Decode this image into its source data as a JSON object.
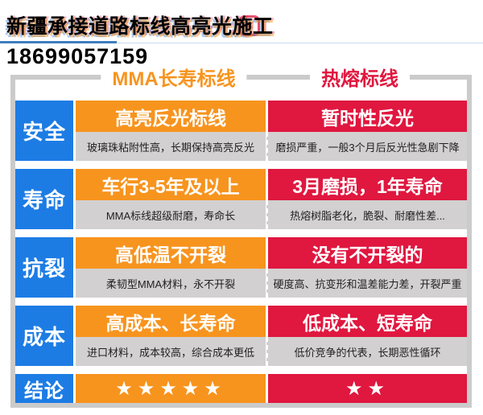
{
  "header": {
    "title": "新疆承接道路标线高亮光施工",
    "title_mark": "✕",
    "phone": "18699057159"
  },
  "table": {
    "columns": {
      "mma": "MMA长寿标线",
      "hot": "热熔标线"
    },
    "rows": [
      {
        "label": "安全",
        "mma": {
          "headline": "高亮反光标线",
          "detail": "玻璃珠粘附性高，长期保持高亮反光"
        },
        "hot": {
          "headline": "暂时性反光",
          "detail": "磨损严重，一般3个月后反光性急剧下降"
        }
      },
      {
        "label": "寿命",
        "mma": {
          "headline": "车行3-5年及以上",
          "detail": "MMA标线超级耐磨，寿命长"
        },
        "hot": {
          "headline": "3月磨损，1年寿命",
          "detail": "热熔树脂老化，脆裂、耐磨性差..."
        }
      },
      {
        "label": "抗裂",
        "mma": {
          "headline": "高低温不开裂",
          "detail": "柔韧型MMA材料，永不开裂"
        },
        "hot": {
          "headline": "没有不开裂的",
          "detail": "硬度高、抗变形和温差能力差，开裂严重"
        }
      },
      {
        "label": "成本",
        "mma": {
          "headline": "高成本、长寿命",
          "detail": "进口材料，成本较高，综合成本更低"
        },
        "hot": {
          "headline": "低成本、短寿命",
          "detail": "低价竞争的代表，长期恶性循环"
        }
      },
      {
        "label": "结论",
        "mma": {
          "stars": "★★★★★",
          "star_count": 5
        },
        "hot": {
          "stars": "★★",
          "star_count": 2
        }
      }
    ],
    "colors": {
      "label_blue": "#1D7CE4",
      "mma_orange": "#F7941E",
      "hot_red": "#E0173F",
      "detail_gray": "#D2D0D0",
      "frame_gray": "#CBCBCB",
      "underline_blue": "#3D7EC0"
    }
  }
}
